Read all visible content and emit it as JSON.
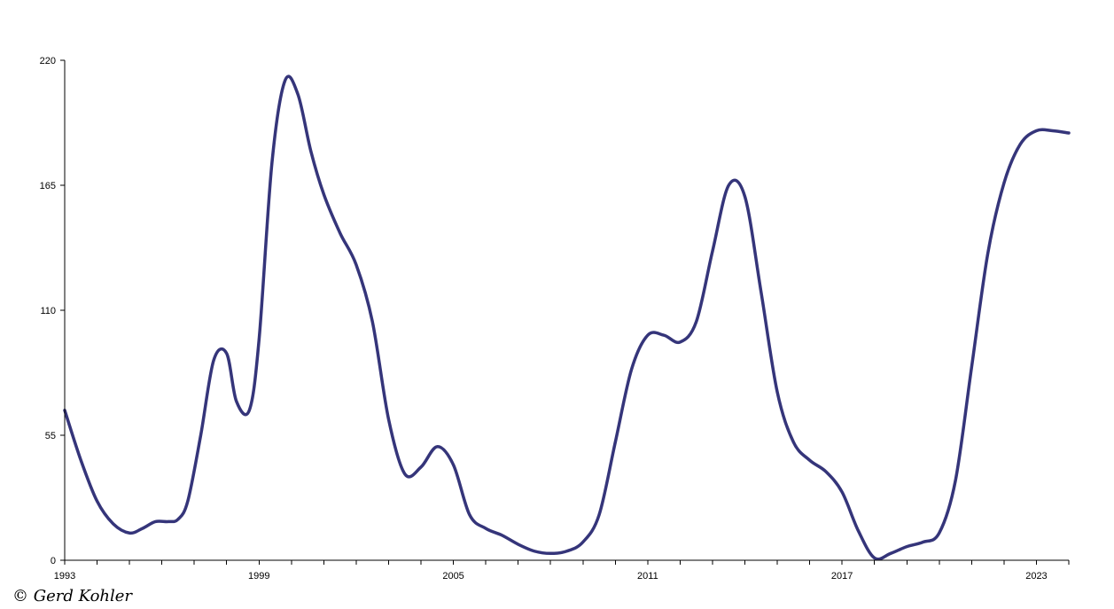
{
  "credit": "© Gerd Kohler",
  "colors": {
    "line": "#35357a",
    "axis": "#000000",
    "background": "#ffffff"
  },
  "chart_data": {
    "type": "line",
    "title": "",
    "xlabel": "",
    "ylabel": "",
    "xlim": [
      1993,
      2024
    ],
    "ylim": [
      0,
      220
    ],
    "x_major_ticks": [
      1993,
      1999,
      2005,
      2011,
      2017,
      2023
    ],
    "y_ticks": [
      0,
      55,
      110,
      165,
      220
    ],
    "grid": false,
    "legend": "none",
    "series": [
      {
        "x": [
          1993.0,
          1993.5,
          1994.0,
          1994.5,
          1995.0,
          1995.4,
          1995.8,
          1996.2,
          1996.5,
          1996.8,
          1997.2,
          1997.6,
          1998.0,
          1998.3,
          1998.7,
          1999.0,
          1999.4,
          1999.8,
          2000.2,
          2000.6,
          2001.0,
          2001.5,
          2002.0,
          2002.5,
          2003.0,
          2003.5,
          2004.0,
          2004.5,
          2005.0,
          2005.5,
          2006.0,
          2006.5,
          2007.0,
          2007.5,
          2008.0,
          2008.5,
          2009.0,
          2009.5,
          2010.0,
          2010.5,
          2011.0,
          2011.5,
          2012.0,
          2012.5,
          2013.0,
          2013.5,
          2014.0,
          2014.5,
          2015.0,
          2015.5,
          2016.0,
          2016.5,
          2017.0,
          2017.5,
          2018.0,
          2018.5,
          2019.0,
          2019.5,
          2020.0,
          2020.5,
          2021.0,
          2021.5,
          2022.0,
          2022.5,
          2023.0,
          2023.5,
          2024.0
        ],
        "y": [
          66,
          44,
          26,
          16,
          12,
          14,
          17,
          17,
          18,
          26,
          55,
          88,
          91,
          70,
          66,
          97,
          175,
          211,
          205,
          180,
          161,
          144,
          130,
          105,
          62,
          38,
          41,
          50,
          42,
          20,
          14,
          11,
          7,
          4,
          3,
          4,
          8,
          20,
          52,
          84,
          99,
          99,
          96,
          105,
          136,
          165,
          160,
          118,
          74,
          52,
          44,
          39,
          30,
          13,
          1,
          3,
          6,
          8,
          12,
          35,
          85,
          135,
          166,
          183,
          189,
          189,
          188
        ]
      }
    ]
  }
}
